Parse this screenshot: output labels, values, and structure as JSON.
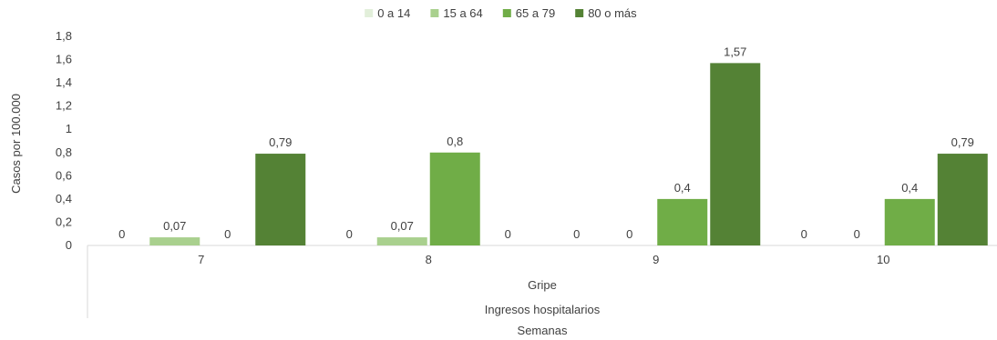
{
  "chart_data": {
    "type": "bar",
    "categories": [
      "7",
      "8",
      "9",
      "10"
    ],
    "series": [
      {
        "name": "0 a 14",
        "color": "#e2efda",
        "values": [
          0,
          0,
          0,
          0
        ]
      },
      {
        "name": "15 a 64",
        "color": "#a9d08e",
        "values": [
          0.07,
          0.07,
          0,
          0
        ]
      },
      {
        "name": "65 a 79",
        "color": "#70ad47",
        "values": [
          0,
          0.8,
          0.4,
          0.4
        ]
      },
      {
        "name": "80 o más",
        "color": "#548235",
        "values": [
          0.79,
          0,
          1.57,
          0.79
        ]
      }
    ],
    "data_labels": [
      [
        "0",
        "0,07",
        "0",
        "0,79"
      ],
      [
        "0",
        "0,07",
        "0,8",
        "0"
      ],
      [
        "0",
        "0",
        "0,4",
        "1,57"
      ],
      [
        "0",
        "0",
        "0,4",
        "0,79"
      ]
    ],
    "ylim": [
      0,
      1.8
    ],
    "yticks": [
      "0",
      "0,2",
      "0,4",
      "0,6",
      "0,8",
      "1",
      "1,2",
      "1,4",
      "1,6",
      "1,8"
    ],
    "ylabel": "Casos por 100.000",
    "group_label_1": "Gripe",
    "group_label_2": "Ingresos hospitalarios",
    "xlabel": "Semanas",
    "legend_position": "top-center",
    "grid": false
  }
}
